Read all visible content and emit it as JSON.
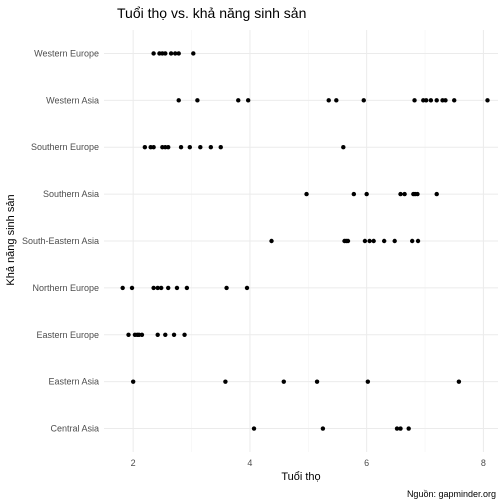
{
  "chart_data": {
    "type": "scatter",
    "title": "Tuổi thọ vs. khả năng sinh sản",
    "xlabel": "Tuổi thọ",
    "ylabel": "Khả năng sinh sản",
    "caption": "Nguồn: gapminder.org",
    "xlim": [
      1.5,
      8.25
    ],
    "x_ticks": [
      2,
      4,
      6,
      8
    ],
    "categories": [
      "Central Asia",
      "Eastern Asia",
      "Eastern Europe",
      "Northern Europe",
      "South-Eastern Asia",
      "Southern Asia",
      "Southern Europe",
      "Western Asia",
      "Western Europe"
    ],
    "points": [
      {
        "category": "Western Europe",
        "x": [
          2.35,
          2.45,
          2.5,
          2.55,
          2.65,
          2.72,
          2.78,
          3.03
        ]
      },
      {
        "category": "Western Asia",
        "x": [
          2.78,
          3.1,
          3.8,
          3.97,
          5.35,
          5.48,
          5.95,
          6.82,
          6.97,
          7.02,
          7.1,
          7.2,
          7.3,
          7.35,
          7.5,
          8.07
        ]
      },
      {
        "category": "Southern Europe",
        "x": [
          2.2,
          2.3,
          2.35,
          2.5,
          2.55,
          2.6,
          2.82,
          2.97,
          3.15,
          3.33,
          3.5,
          5.6
        ]
      },
      {
        "category": "Southern Asia",
        "x": [
          4.97,
          5.78,
          6.0,
          6.58,
          6.65,
          6.8,
          6.83,
          6.87,
          7.2
        ]
      },
      {
        "category": "South-Eastern Asia",
        "x": [
          4.37,
          5.62,
          5.65,
          5.68,
          5.97,
          6.05,
          6.12,
          6.3,
          6.48,
          6.78,
          6.88
        ]
      },
      {
        "category": "Northern Europe",
        "x": [
          1.82,
          1.98,
          2.35,
          2.42,
          2.48,
          2.6,
          2.75,
          2.92,
          3.6,
          3.95
        ]
      },
      {
        "category": "Eastern Europe",
        "x": [
          1.92,
          2.03,
          2.07,
          2.1,
          2.15,
          2.42,
          2.55,
          2.7,
          2.88
        ]
      },
      {
        "category": "Eastern Asia",
        "x": [
          2.0,
          3.58,
          4.58,
          5.15,
          6.02,
          7.58
        ]
      },
      {
        "category": "Central Asia",
        "x": [
          4.07,
          5.25,
          6.52,
          6.58,
          6.72
        ]
      }
    ],
    "grid": true,
    "legend": "none"
  }
}
